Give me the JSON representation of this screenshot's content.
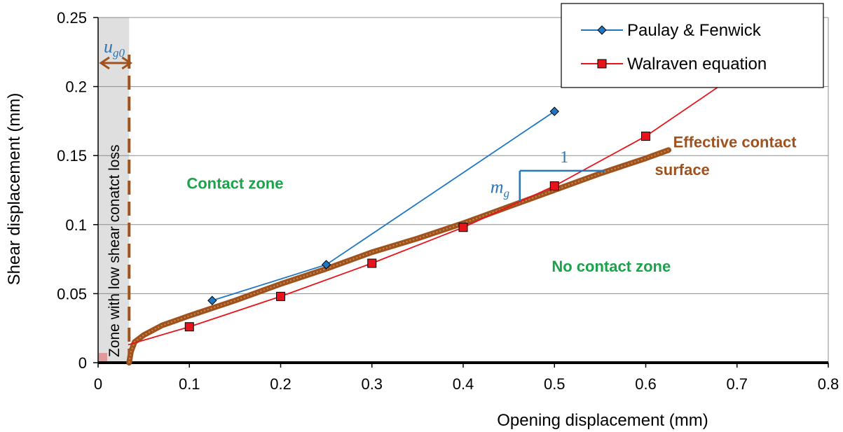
{
  "chart_data": {
    "type": "line",
    "xlabel": "Opening displacement (mm)",
    "ylabel": "Shear displacement (mm)",
    "xlim": [
      0,
      0.8
    ],
    "ylim": [
      0,
      0.25
    ],
    "xticks": [
      "0",
      "0.1",
      "0.2",
      "0.3",
      "0.4",
      "0.5",
      "0.6",
      "0.7",
      "0.8"
    ],
    "yticks": [
      "0",
      "0.05",
      "0.1",
      "0.15",
      "0.2",
      "0.25"
    ],
    "grid": "horizontal",
    "legend_position": "top-right",
    "series": [
      {
        "name": "Paulay & Fenwick",
        "color": "#1f77c4",
        "marker": "diamond",
        "x": [
          0.125,
          0.25,
          0.5
        ],
        "y": [
          0.045,
          0.071,
          0.182
        ]
      },
      {
        "name": "Walraven equation",
        "color": "#e8141b",
        "marker": "square",
        "x": [
          0.1,
          0.2,
          0.3,
          0.4,
          0.5,
          0.6
        ],
        "y": [
          0.026,
          0.048,
          0.072,
          0.098,
          0.128,
          0.164
        ],
        "line_x": [
          0.033,
          0.1,
          0.2,
          0.3,
          0.4,
          0.5,
          0.6,
          0.68
        ],
        "line_y": [
          0.013,
          0.026,
          0.048,
          0.072,
          0.098,
          0.128,
          0.164,
          0.2
        ]
      },
      {
        "color": "#a0521d",
        "style": "thick",
        "x": [
          0.034,
          0.036,
          0.04,
          0.05,
          0.07,
          0.1,
          0.15,
          0.2,
          0.25,
          0.3,
          0.35,
          0.4,
          0.45,
          0.5,
          0.55,
          0.6,
          0.625
        ],
        "y": [
          0.0,
          0.008,
          0.015,
          0.02,
          0.027,
          0.034,
          0.045,
          0.057,
          0.068,
          0.08,
          0.09,
          0.101,
          0.113,
          0.125,
          0.137,
          0.148,
          0.154
        ]
      }
    ],
    "annotations": {
      "contact_zone": "Contact zone",
      "no_contact_zone": "No contact zone",
      "effective_contact_line1": "Effective contact",
      "effective_contact_line2": "surface",
      "low_shear_zone": "Zone with low shear conatct loss",
      "u_symbol": "u",
      "u_subscript": "g0",
      "slope_symbol": "m",
      "slope_subscript": "g",
      "slope_run": "1",
      "u_g0_value": 0.034
    },
    "colors": {
      "zone_text": "#1aa34a",
      "contact_surface": "#a0521d",
      "math_annotation": "#2e75b6",
      "shaded_zone": "#d9d9d9"
    }
  }
}
